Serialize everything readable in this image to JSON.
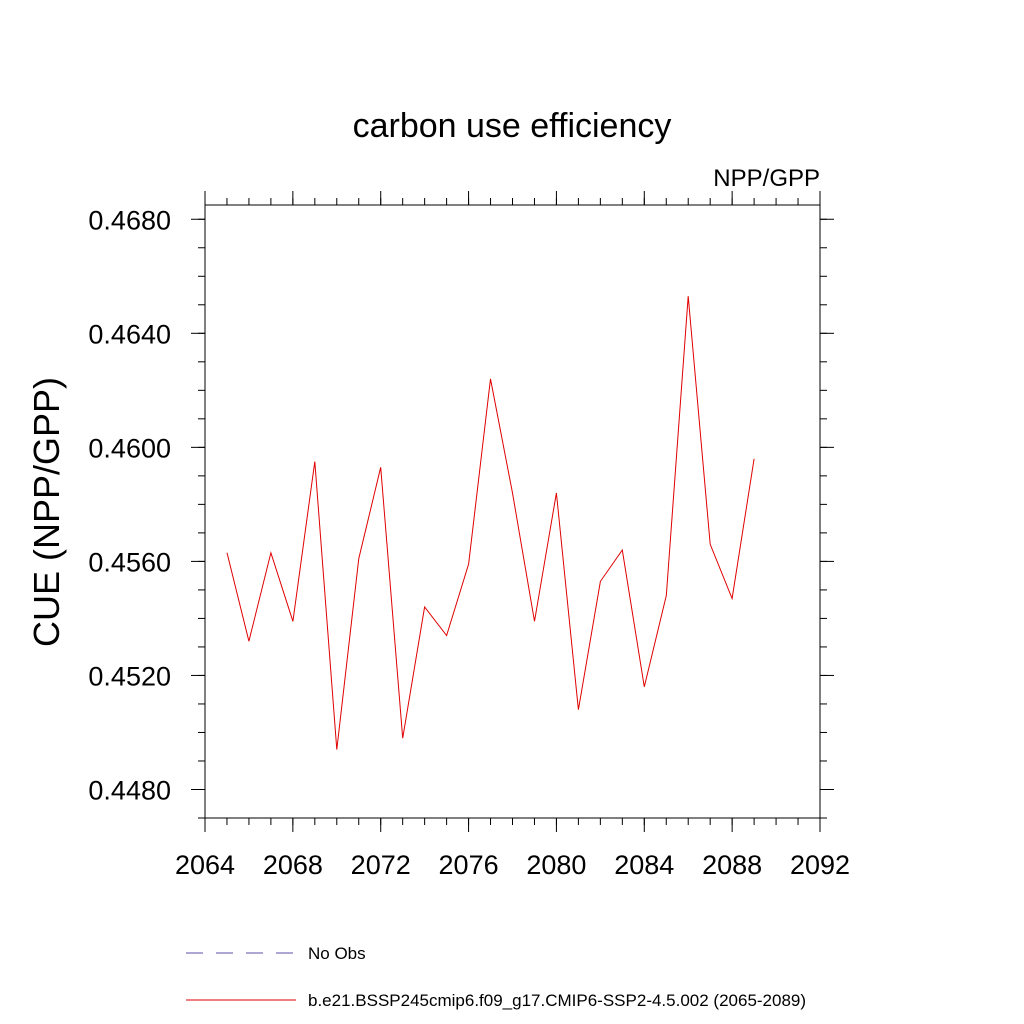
{
  "chart_data": {
    "type": "line",
    "title": "carbon use efficiency",
    "subtitle": "NPP/GPP",
    "xlabel": "",
    "ylabel": "CUE  (NPP/GPP)",
    "xlim": [
      2064,
      2092
    ],
    "ylim": [
      0.447,
      0.4685
    ],
    "x_ticks": [
      2064,
      2068,
      2072,
      2076,
      2080,
      2084,
      2088,
      2092
    ],
    "y_ticks": [
      "0.4480",
      "0.4520",
      "0.4560",
      "0.4600",
      "0.4640",
      "0.4680"
    ],
    "x_minor_step": 1,
    "y_minor_step": 0.001,
    "grid": false,
    "series": [
      {
        "name": "b.e21.BSSP245cmip6.f09_g17.CMIP6-SSP2-4.5.002 (2065-2089)",
        "color": "#e00000",
        "x": [
          2065,
          2066,
          2067,
          2068,
          2069,
          2070,
          2071,
          2072,
          2073,
          2074,
          2075,
          2076,
          2077,
          2078,
          2079,
          2080,
          2081,
          2082,
          2083,
          2084,
          2085,
          2086,
          2087,
          2088,
          2089
        ],
        "values": [
          0.4563,
          0.4532,
          0.4563,
          0.4539,
          0.4595,
          0.4494,
          0.4561,
          0.4593,
          0.4498,
          0.4544,
          0.4534,
          0.4559,
          0.4624,
          0.4584,
          0.4539,
          0.4584,
          0.4508,
          0.4553,
          0.4564,
          0.4516,
          0.4548,
          0.4653,
          0.4566,
          0.4547,
          0.4596
        ]
      }
    ],
    "legend": [
      {
        "label": "No Obs",
        "color": "#5a4fa8",
        "style": "dashed"
      },
      {
        "label": "b.e21.BSSP245cmip6.f09_g17.CMIP6-SSP2-4.5.002 (2065-2089)",
        "color": "#e00000",
        "style": "solid"
      }
    ],
    "legend_position": "bottom"
  }
}
